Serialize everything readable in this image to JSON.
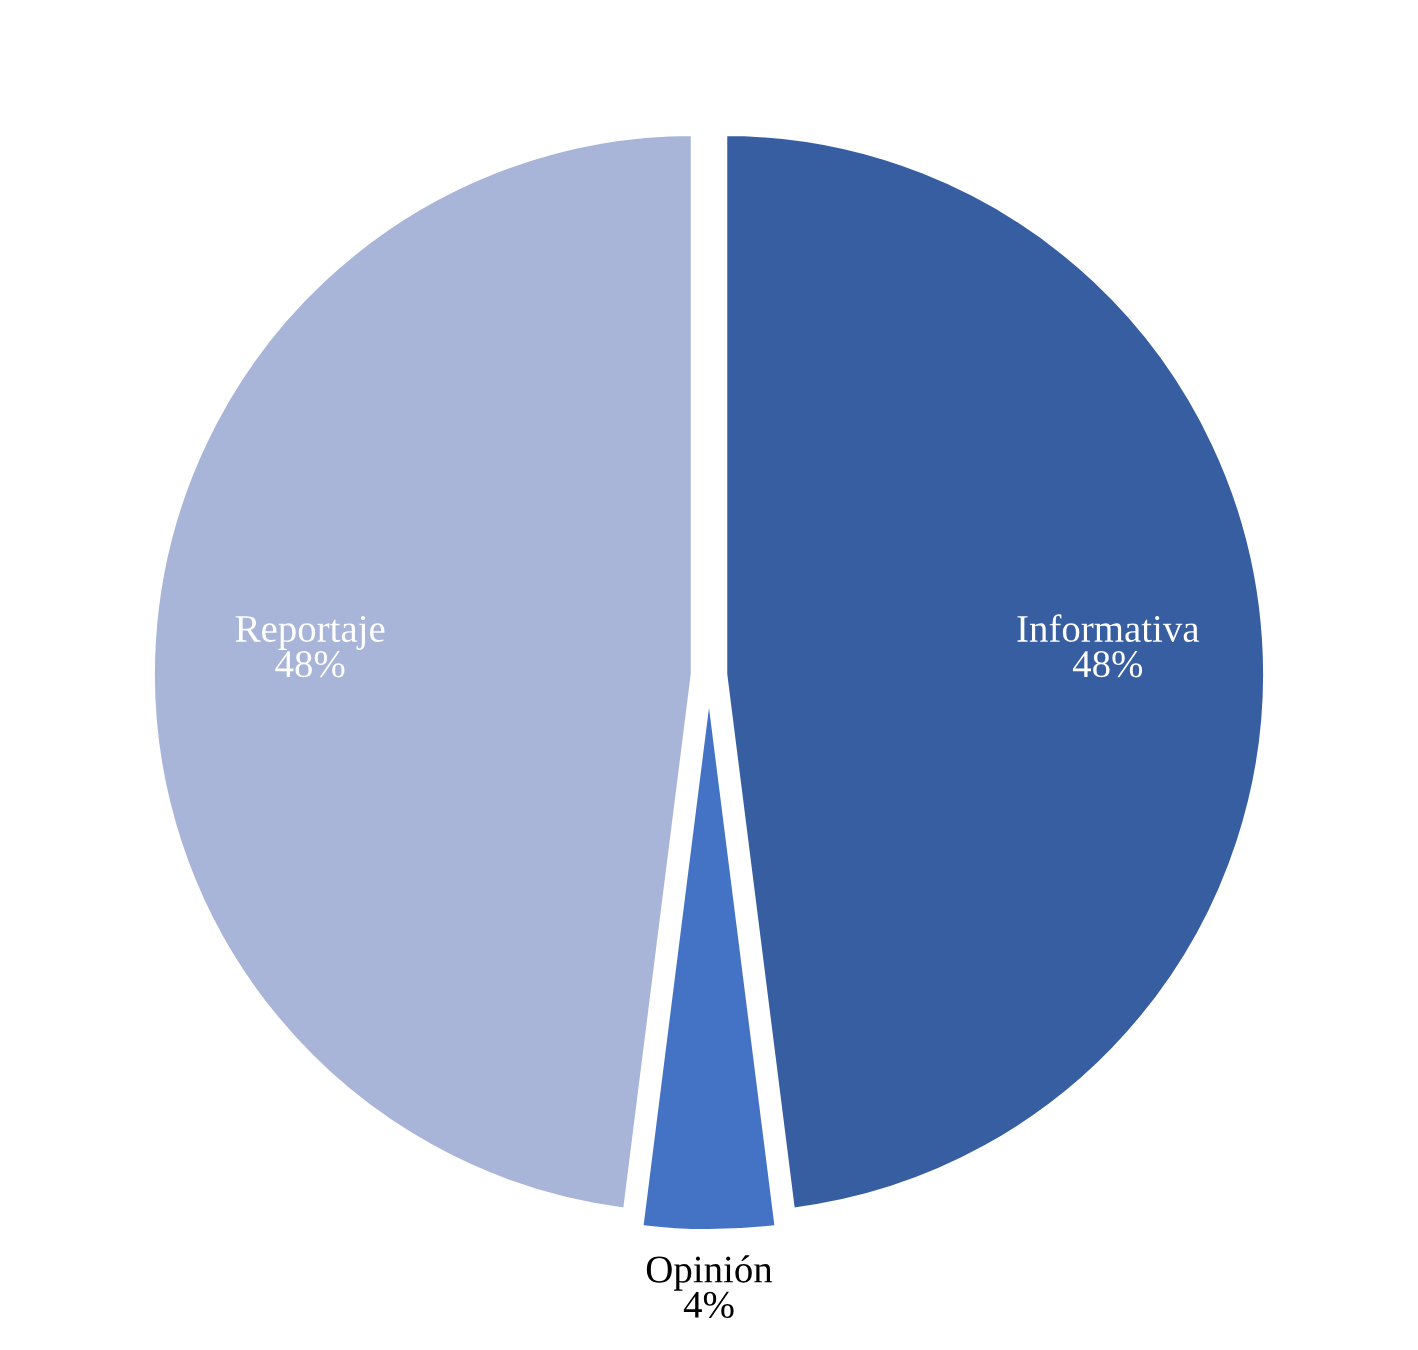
{
  "chart_data": {
    "type": "pie",
    "categories": [
      "Informativa",
      "Opinión",
      "Reportaje"
    ],
    "values": [
      48,
      4,
      48
    ],
    "colors": [
      "#365ea1",
      "#4472c4",
      "#a8b5d9"
    ],
    "value_labels": [
      "48%",
      "4%",
      "48%"
    ]
  }
}
